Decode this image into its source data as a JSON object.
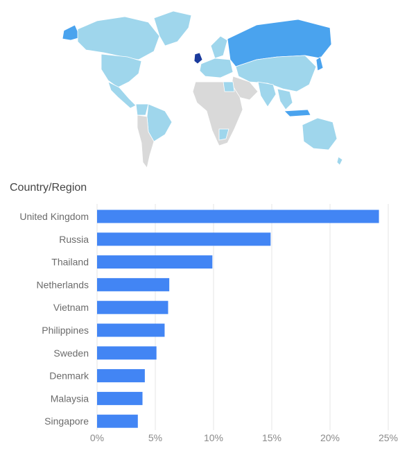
{
  "section_title": "Country/Region",
  "colors": {
    "bar": "#4285f4",
    "map_none": "#d9d9d9",
    "map_low": "#9fd6ec",
    "map_mid": "#4aa3ee",
    "map_high": "#1a3a9c",
    "grid": "#e6e6e6"
  },
  "chart_data": {
    "type": "bar",
    "orientation": "horizontal",
    "categories": [
      "United Kingdom",
      "Russia",
      "Thailand",
      "Netherlands",
      "Vietnam",
      "Philippines",
      "Sweden",
      "Denmark",
      "Malaysia",
      "Singapore"
    ],
    "values": [
      24.2,
      14.9,
      9.9,
      6.2,
      6.1,
      5.8,
      5.1,
      4.1,
      3.9,
      3.5
    ],
    "xlim": [
      0,
      25
    ],
    "xticks": [
      "0%",
      "5%",
      "10%",
      "15%",
      "20%",
      "25%"
    ],
    "grid": true
  }
}
